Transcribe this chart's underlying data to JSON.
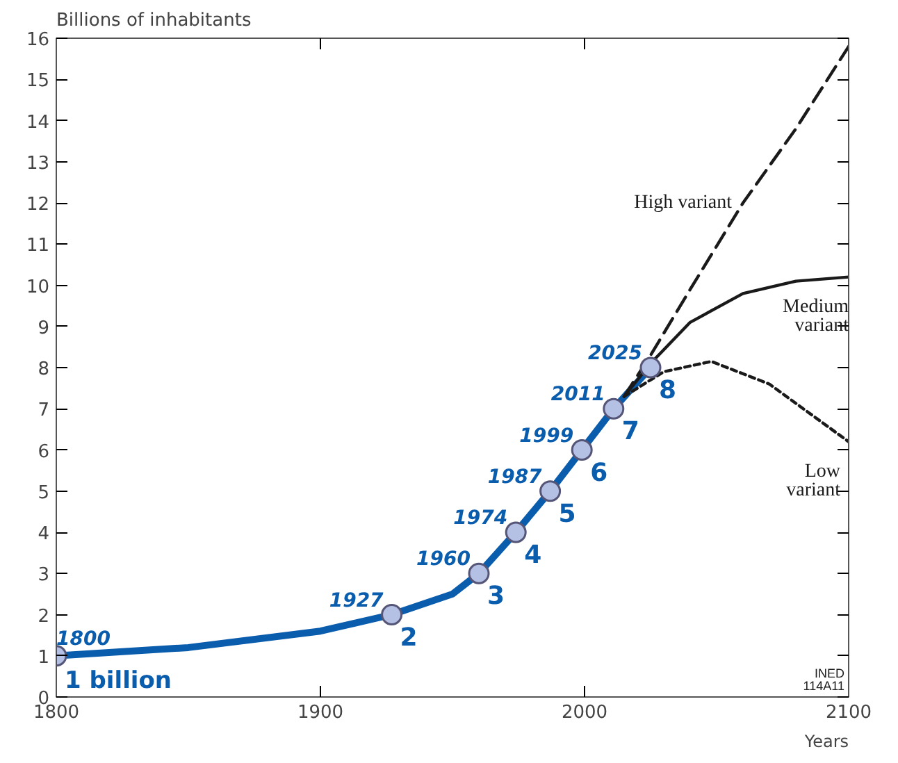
{
  "chart_data": {
    "type": "line",
    "ylabel": "Billions of inhabitants",
    "xlabel": "Years",
    "xlim": [
      1800,
      2100
    ],
    "ylim": [
      0,
      16
    ],
    "xticks": [
      1800,
      1900,
      2000,
      {
        "value": 2100,
        "label": "2100"
      }
    ],
    "yticks": [
      0,
      1,
      2,
      3,
      4,
      5,
      6,
      7,
      8,
      9,
      10,
      11,
      12,
      13,
      14,
      15,
      16
    ],
    "grid": false,
    "legend": false,
    "series": [
      {
        "color": "#0a5cad",
        "line_style": "solid",
        "x": [
          1800,
          1850,
          1900,
          1927,
          1950,
          1960,
          1974,
          1987,
          1999,
          2011,
          2025
        ],
        "values": [
          1,
          1.2,
          1.6,
          2,
          2.5,
          3,
          4,
          5,
          6,
          7,
          8
        ]
      },
      {
        "name": "High variant",
        "color": "#1a1a1a",
        "line_style": "dashed",
        "x": [
          2015,
          2025,
          2040,
          2060,
          2080,
          2100
        ],
        "values": [
          7.3,
          8.3,
          9.9,
          12.0,
          13.8,
          15.8
        ]
      },
      {
        "name": "Medium\nvariant",
        "color": "#1a1a1a",
        "line_style": "solid",
        "x": [
          2015,
          2025,
          2040,
          2060,
          2080,
          2100
        ],
        "values": [
          7.3,
          8.1,
          9.1,
          9.8,
          10.1,
          10.2
        ]
      },
      {
        "name": "Low\nvariant",
        "color": "#1a1a1a",
        "line_style": "dotted",
        "x": [
          2015,
          2030,
          2048,
          2070,
          2085,
          2100
        ],
        "values": [
          7.3,
          7.9,
          8.15,
          7.6,
          6.9,
          6.2
        ]
      },
      {
        "type": "scatter",
        "color": "#b4c0e4",
        "marker": "circle",
        "x": [
          1800,
          1927,
          1960,
          1974,
          1987,
          1999,
          2011,
          2025
        ],
        "values": [
          1,
          2,
          3,
          4,
          5,
          6,
          7,
          8
        ]
      }
    ],
    "annotations": [
      {
        "text": "1800",
        "x": 1800,
        "y": 1
      },
      {
        "text": "1 billion",
        "x": 1800,
        "y": 1
      },
      {
        "text": "1927",
        "x": 1927,
        "y": 2
      },
      {
        "text": "2",
        "x": 1927,
        "y": 2
      },
      {
        "text": "1960",
        "x": 1960,
        "y": 3
      },
      {
        "text": "3",
        "x": 1960,
        "y": 3
      },
      {
        "text": "1974",
        "x": 1974,
        "y": 4
      },
      {
        "text": "4",
        "x": 1974,
        "y": 4
      },
      {
        "text": "1987",
        "x": 1987,
        "y": 5
      },
      {
        "text": "5",
        "x": 1987,
        "y": 5
      },
      {
        "text": "1999",
        "x": 1999,
        "y": 6
      },
      {
        "text": "6",
        "x": 1999,
        "y": 6
      },
      {
        "text": "2011",
        "x": 2011,
        "y": 7
      },
      {
        "text": "7",
        "x": 2011,
        "y": 7
      },
      {
        "text": "2025",
        "x": 2025,
        "y": 8
      },
      {
        "text": "8",
        "x": 2025,
        "y": 8
      },
      "INED\n114A11"
    ]
  }
}
